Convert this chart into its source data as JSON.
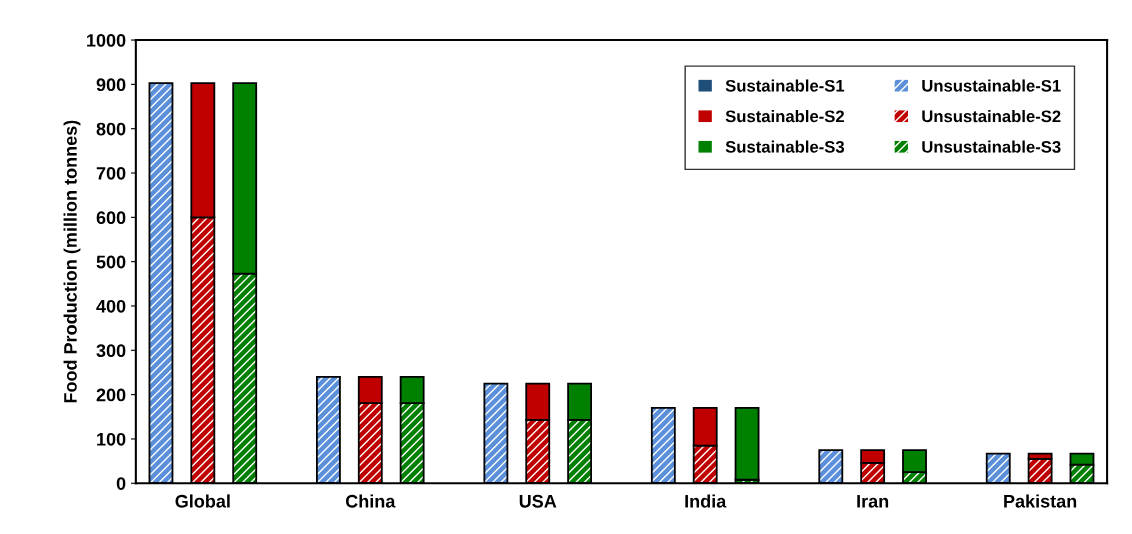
{
  "chart_data": {
    "type": "bar",
    "stacked": true,
    "ylabel": "Food Production (million tonnes)",
    "categories": [
      null,
      "Global",
      null,
      null,
      null,
      "China",
      null,
      null,
      null,
      "USA",
      null,
      null,
      null,
      "India",
      null,
      null,
      null,
      "Iran",
      null,
      null,
      null,
      "Pakistan",
      null
    ],
    "ylim": [
      0,
      1000
    ],
    "yticks": [
      0,
      100,
      200,
      300,
      400,
      500,
      600,
      700,
      800,
      900,
      1000
    ],
    "grid": false,
    "legend": "top right",
    "series": [
      {
        "name": "Unsustainable-S1",
        "color": "#5b8fd9",
        "values": [
          903,
          null,
          null,
          null,
          240,
          null,
          null,
          null,
          225,
          null,
          null,
          null,
          170,
          null,
          null,
          null,
          75,
          null,
          null,
          null,
          67,
          null,
          null
        ]
      },
      {
        "name": "Unsustainable-S2",
        "color": "#c00000",
        "values": [
          null,
          600,
          null,
          null,
          null,
          181,
          null,
          null,
          null,
          143,
          null,
          null,
          null,
          85,
          null,
          null,
          null,
          46,
          null,
          null,
          null,
          55,
          null
        ]
      },
      {
        "name": "Unsustainable-S3",
        "color": "#008000",
        "values": [
          null,
          null,
          473,
          null,
          null,
          null,
          181,
          null,
          null,
          null,
          143,
          null,
          null,
          null,
          8,
          null,
          null,
          null,
          25,
          null,
          null,
          null,
          42
        ]
      },
      {
        "name": "Sustainable-S1",
        "color": "#1f4e79",
        "values": [
          0,
          null,
          null,
          null,
          0,
          null,
          null,
          null,
          0,
          null,
          null,
          null,
          0,
          null,
          null,
          null,
          0,
          null,
          null,
          null,
          0,
          null,
          null
        ]
      },
      {
        "name": "Sustainable-S2",
        "color": "#c00000",
        "values": [
          null,
          303,
          null,
          null,
          null,
          59,
          null,
          null,
          null,
          82,
          null,
          null,
          null,
          85,
          null,
          null,
          null,
          29,
          null,
          null,
          null,
          12,
          null
        ]
      },
      {
        "name": "Sustainable-S3",
        "color": "#008000",
        "values": [
          null,
          null,
          430,
          null,
          null,
          null,
          59,
          null,
          null,
          null,
          82,
          null,
          null,
          null,
          162,
          null,
          null,
          null,
          50,
          null,
          null,
          null,
          25
        ]
      }
    ]
  }
}
